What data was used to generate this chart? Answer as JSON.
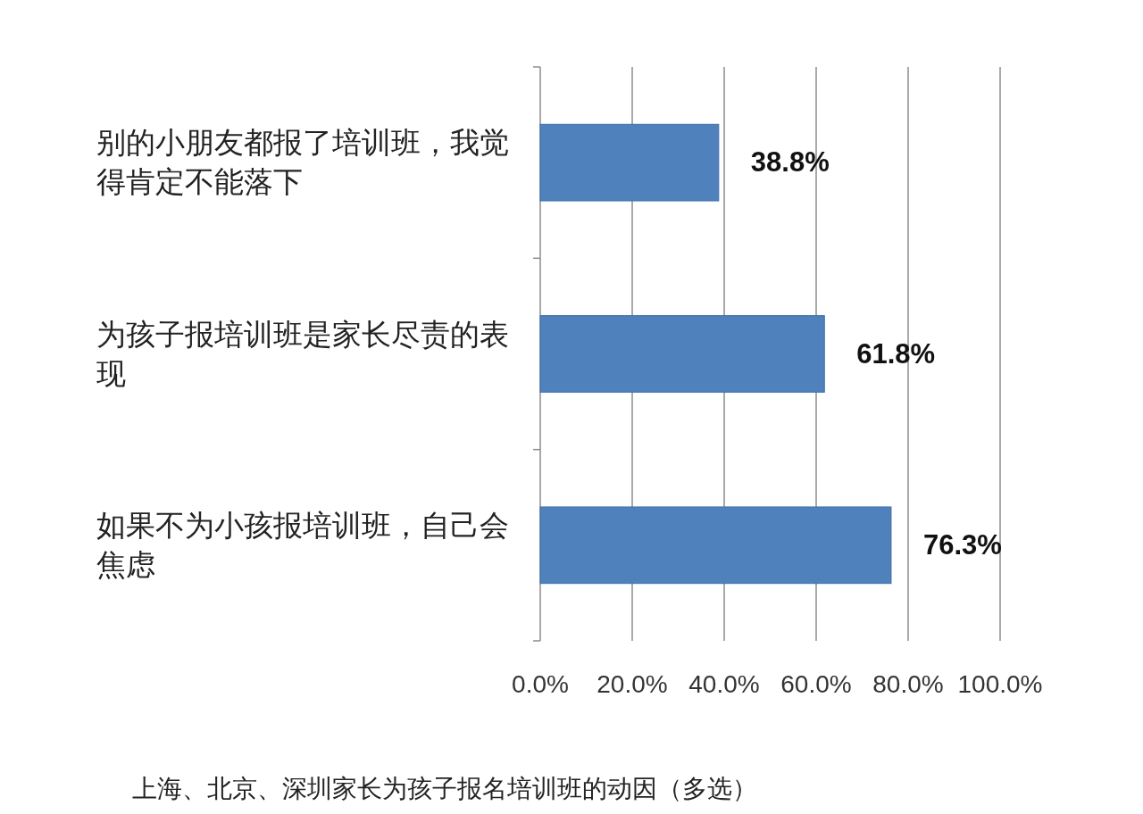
{
  "chart_data": {
    "type": "bar",
    "orientation": "horizontal",
    "categories": [
      "别的小朋友都报了培训班，我觉得肯定不能落下",
      "为孩子报培训班是家长尽责的表现",
      "如果不为小孩报培训班，自己会焦虑"
    ],
    "values": [
      38.8,
      61.8,
      76.3
    ],
    "value_labels": [
      "38.8%",
      "61.8%",
      "76.3%"
    ],
    "color": "#4f81bd",
    "xlim": [
      0,
      100
    ],
    "xticks": [
      {
        "value": 0,
        "label": "0.0%"
      },
      {
        "value": 20,
        "label": "20.0%"
      },
      {
        "value": 40,
        "label": "40.0%"
      },
      {
        "value": 60,
        "label": "60.0%"
      },
      {
        "value": 80,
        "label": "80.0%"
      },
      {
        "value": 100,
        "label": "100.0%"
      }
    ],
    "grid": "x",
    "annotations": [
      "上海、北京、深圳家长为孩子报名培训班的动因（多选）"
    ]
  }
}
